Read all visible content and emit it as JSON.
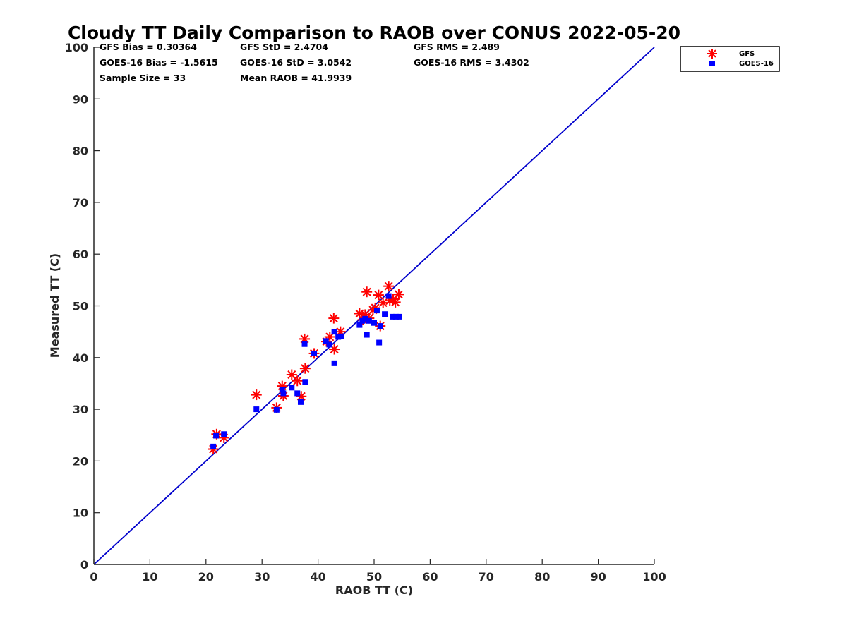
{
  "chart_data": {
    "type": "scatter",
    "title": "Cloudy TT Daily Comparison to RAOB over CONUS 2022-05-20",
    "xlabel": "RAOB TT (C)",
    "ylabel": "Measured TT (C)",
    "xlim": [
      0,
      100
    ],
    "ylim": [
      0,
      100
    ],
    "xticks": [
      "0",
      "10",
      "20",
      "30",
      "40",
      "50",
      "60",
      "70",
      "80",
      "90",
      "100"
    ],
    "yticks": [
      "0",
      "10",
      "20",
      "30",
      "40",
      "50",
      "60",
      "70",
      "80",
      "90",
      "100"
    ],
    "grid": false,
    "legend": {
      "placement": "outside-top-right",
      "entries": [
        {
          "name": "GFS",
          "marker": "asterisk",
          "color": "#ff0000"
        },
        {
          "name": "GOES-16",
          "marker": "square",
          "color": "#0000ff"
        }
      ]
    },
    "stats": [
      [
        "GFS Bias = 0.30364",
        "GFS StD = 2.4704",
        "GFS RMS = 2.489"
      ],
      [
        "GOES-16 Bias = -1.5615",
        "GOES-16 StD = 3.0542",
        "GOES-16 RMS = 3.4302"
      ],
      [
        "Sample Size = 33",
        "Mean RAOB = 41.9939",
        ""
      ]
    ],
    "reference_line": {
      "from": [
        0,
        0
      ],
      "to": [
        100,
        100
      ],
      "color": "#0000cc"
    },
    "series": [
      {
        "name": "GFS",
        "color": "#ff0000",
        "marker": "asterisk",
        "points": [
          [
            21.3,
            22.3
          ],
          [
            21.9,
            25.2
          ],
          [
            23.2,
            24.5
          ],
          [
            29.0,
            32.8
          ],
          [
            32.6,
            30.3
          ],
          [
            33.6,
            34.5
          ],
          [
            33.8,
            32.6
          ],
          [
            35.3,
            36.7
          ],
          [
            36.3,
            35.5
          ],
          [
            37.0,
            32.5
          ],
          [
            37.6,
            43.6
          ],
          [
            37.7,
            37.9
          ],
          [
            39.3,
            40.8
          ],
          [
            41.5,
            43.1
          ],
          [
            42.1,
            44.0
          ],
          [
            42.8,
            47.6
          ],
          [
            42.9,
            41.6
          ],
          [
            44.0,
            45.0
          ],
          [
            47.4,
            48.5
          ],
          [
            48.0,
            47.3
          ],
          [
            48.7,
            52.7
          ],
          [
            49.1,
            47.6
          ],
          [
            49.8,
            49.2
          ],
          [
            50.8,
            52.1
          ],
          [
            51.1,
            46.1
          ],
          [
            51.6,
            50.6
          ],
          [
            52.6,
            53.8
          ],
          [
            52.8,
            51.0
          ],
          [
            53.4,
            51.3
          ],
          [
            53.8,
            50.7
          ],
          [
            54.4,
            52.2
          ],
          [
            48.4,
            48.3
          ],
          [
            50.2,
            49.6
          ]
        ]
      },
      {
        "name": "GOES-16",
        "color": "#0000ff",
        "marker": "square",
        "points": [
          [
            21.3,
            22.8
          ],
          [
            21.8,
            24.9
          ],
          [
            23.2,
            25.2
          ],
          [
            29.0,
            30.0
          ],
          [
            32.6,
            29.9
          ],
          [
            33.6,
            33.8
          ],
          [
            33.8,
            33.1
          ],
          [
            35.3,
            34.2
          ],
          [
            36.3,
            33.1
          ],
          [
            36.9,
            31.4
          ],
          [
            37.6,
            42.6
          ],
          [
            37.7,
            35.3
          ],
          [
            39.3,
            40.8
          ],
          [
            41.4,
            43.2
          ],
          [
            42.0,
            42.5
          ],
          [
            42.9,
            45.0
          ],
          [
            42.9,
            38.9
          ],
          [
            43.6,
            44.0
          ],
          [
            44.2,
            44.1
          ],
          [
            47.4,
            46.3
          ],
          [
            47.9,
            47.1
          ],
          [
            48.7,
            44.4
          ],
          [
            49.1,
            47.1
          ],
          [
            50.0,
            46.7
          ],
          [
            50.9,
            42.9
          ],
          [
            51.1,
            46.1
          ],
          [
            51.9,
            48.4
          ],
          [
            52.6,
            51.9
          ],
          [
            53.3,
            47.9
          ],
          [
            53.9,
            47.9
          ],
          [
            54.5,
            47.9
          ],
          [
            48.4,
            47.5
          ],
          [
            50.5,
            49.1
          ]
        ]
      }
    ]
  }
}
